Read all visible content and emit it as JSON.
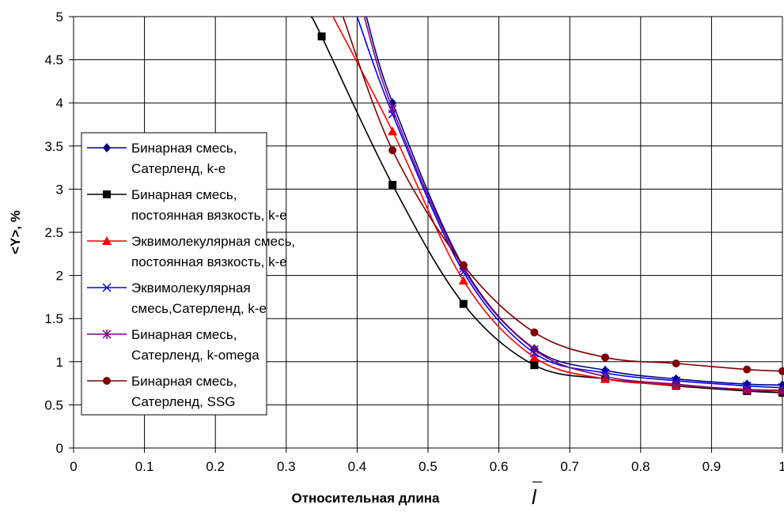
{
  "chart_data": {
    "type": "line",
    "xlabel": "Относительная длина",
    "xlabel_symbol": "l",
    "ylabel": "<Y>, %",
    "xlim": [
      0,
      1
    ],
    "ylim": [
      0,
      5
    ],
    "x_ticks": [
      "0",
      "0.1",
      "0.2",
      "0.3",
      "0.4",
      "0.5",
      "0.6",
      "0.7",
      "0.8",
      "0.9",
      "1"
    ],
    "y_ticks": [
      "0",
      "0.5",
      "1",
      "1.5",
      "2",
      "2.5",
      "3",
      "3.5",
      "4",
      "4.5",
      "5"
    ],
    "grid": true,
    "legend_position": "left",
    "series": [
      {
        "name": "Бинарная смесь,\nСатерленд, k-e",
        "color": "#000080",
        "marker": "diamond",
        "curve_x": [
          0.413,
          0.45,
          0.55,
          0.65,
          0.75,
          0.85,
          0.95,
          1.0
        ],
        "curve_y": [
          5.0,
          4.0,
          2.1,
          1.15,
          0.9,
          0.8,
          0.74,
          0.73
        ],
        "x": [
          0.45,
          0.55,
          0.65,
          0.75,
          0.85,
          0.95,
          1.0
        ],
        "values": [
          4.0,
          2.1,
          1.15,
          0.9,
          0.8,
          0.74,
          0.73
        ]
      },
      {
        "name": "Бинарная смесь,\nпостоянная вязкость, k-e",
        "color": "#000000",
        "marker": "square",
        "curve_x": [
          0.335,
          0.35,
          0.45,
          0.55,
          0.65,
          0.75,
          0.85,
          0.95,
          1.0
        ],
        "curve_y": [
          5.0,
          4.77,
          3.05,
          1.67,
          0.96,
          0.8,
          0.72,
          0.66,
          0.64
        ],
        "x": [
          0.35,
          0.45,
          0.55,
          0.65,
          0.75,
          0.85,
          0.95,
          1.0
        ],
        "values": [
          4.77,
          3.05,
          1.67,
          0.96,
          0.8,
          0.72,
          0.66,
          0.64
        ]
      },
      {
        "name": "Эквимолекулярная смесь,\nпостоянная вязкость, k-e",
        "color": "#ff0000",
        "marker": "triangle",
        "curve_x": [
          0.366,
          0.45,
          0.55,
          0.65,
          0.75,
          0.85,
          0.95,
          1.0
        ],
        "curve_y": [
          5.0,
          3.67,
          1.94,
          1.05,
          0.8,
          0.73,
          0.68,
          0.67
        ],
        "x": [
          0.45,
          0.55,
          0.65,
          0.75,
          0.85,
          0.95,
          1.0
        ],
        "values": [
          3.67,
          1.94,
          1.05,
          0.8,
          0.73,
          0.68,
          0.67
        ]
      },
      {
        "name": "Эквимолекулярная\nсмесь,Сатерленд, k-e",
        "color": "#0000ff",
        "marker": "x",
        "curve_x": [
          0.4,
          0.45,
          0.55,
          0.65,
          0.75,
          0.85,
          0.95,
          1.0
        ],
        "curve_y": [
          5.0,
          3.87,
          2.04,
          1.1,
          0.87,
          0.78,
          0.72,
          0.7
        ],
        "x": [
          0.45,
          0.55,
          0.65,
          0.75,
          0.85,
          0.95,
          1.0
        ],
        "values": [
          3.87,
          2.04,
          1.1,
          0.87,
          0.78,
          0.72,
          0.7
        ]
      },
      {
        "name": "Бинарная смесь,\nСатерленд, k-omega",
        "color": "#800080",
        "marker": "star",
        "curve_x": [
          0.41,
          0.45,
          0.55,
          0.65,
          0.75,
          0.85,
          0.95,
          1.0
        ],
        "curve_y": [
          5.0,
          3.93,
          2.08,
          1.14,
          0.83,
          0.74,
          0.67,
          0.66
        ],
        "x": [
          0.45,
          0.55,
          0.65,
          0.75,
          0.85,
          0.95,
          1.0
        ],
        "values": [
          3.93,
          2.08,
          1.14,
          0.83,
          0.74,
          0.67,
          0.66
        ]
      },
      {
        "name": "Бинарная смесь,\nСатерленд, SSG",
        "color": "#800000",
        "marker": "circle",
        "curve_x": [
          0.38,
          0.45,
          0.55,
          0.65,
          0.75,
          0.85,
          0.95,
          1.0
        ],
        "curve_y": [
          5.0,
          3.45,
          2.12,
          1.34,
          1.05,
          0.98,
          0.91,
          0.89
        ],
        "x": [
          0.45,
          0.55,
          0.65,
          0.75,
          0.85,
          0.95,
          1.0
        ],
        "values": [
          3.45,
          2.12,
          1.34,
          1.05,
          0.98,
          0.91,
          0.89
        ]
      }
    ]
  }
}
